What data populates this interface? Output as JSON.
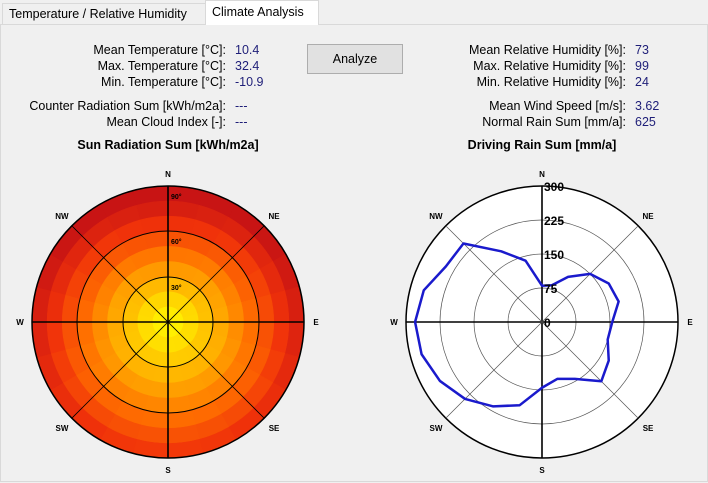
{
  "tabs": [
    {
      "label": "Temperature / Relative Humidity"
    },
    {
      "label": "Climate Analysis"
    }
  ],
  "left_stats": [
    {
      "label": "Mean Temperature [°C]:",
      "value": "10.4"
    },
    {
      "label": "Max. Temperature [°C]:",
      "value": "32.4"
    },
    {
      "label": "Min. Temperature [°C]:",
      "value": "-10.9"
    },
    {
      "label": "Counter Radiation Sum [kWh/m2a]:",
      "value": "---"
    },
    {
      "label": "Mean Cloud Index [-]:",
      "value": "---"
    }
  ],
  "right_stats": [
    {
      "label": "Mean Relative Humidity [%]:",
      "value": "73"
    },
    {
      "label": "Max. Relative Humidity [%]:",
      "value": "99"
    },
    {
      "label": "Min. Relative Humidity [%]:",
      "value": "24"
    },
    {
      "label": "Mean Wind Speed [m/s]:",
      "value": "3.62"
    },
    {
      "label": "Normal Rain Sum [mm/a]:",
      "value": "625"
    }
  ],
  "analyze_button": "Analyze",
  "chart_data": [
    {
      "type": "heatmap",
      "title": "Sun Radiation Sum [kWh/m2a]",
      "directions": [
        "N",
        "NE",
        "E",
        "SE",
        "S",
        "SW",
        "W",
        "NW"
      ],
      "ring_labels": [
        "30°",
        "60°",
        "90°"
      ],
      "colors": {
        "center": "#ffff00",
        "edge": "#cc1111",
        "mid": "#ff6600"
      }
    },
    {
      "type": "line",
      "title": "Driving Rain Sum [mm/a]",
      "directions": [
        "N",
        "NE",
        "E",
        "SE",
        "S",
        "SW",
        "W",
        "NW"
      ],
      "r_ticks": [
        "0",
        "75",
        "150",
        "225",
        "300"
      ],
      "rlim": [
        0,
        300
      ],
      "series_color": "#1a1acc",
      "angles": [
        0,
        15,
        30,
        45,
        60,
        75,
        90,
        105,
        120,
        135,
        150,
        165,
        180,
        195,
        210,
        225,
        240,
        255,
        270,
        285,
        300,
        315,
        330,
        345
      ],
      "values": [
        80,
        84,
        115,
        150,
        170,
        175,
        155,
        150,
        170,
        185,
        145,
        130,
        145,
        190,
        215,
        240,
        260,
        275,
        280,
        270,
        245,
        245,
        180,
        140
      ]
    }
  ]
}
